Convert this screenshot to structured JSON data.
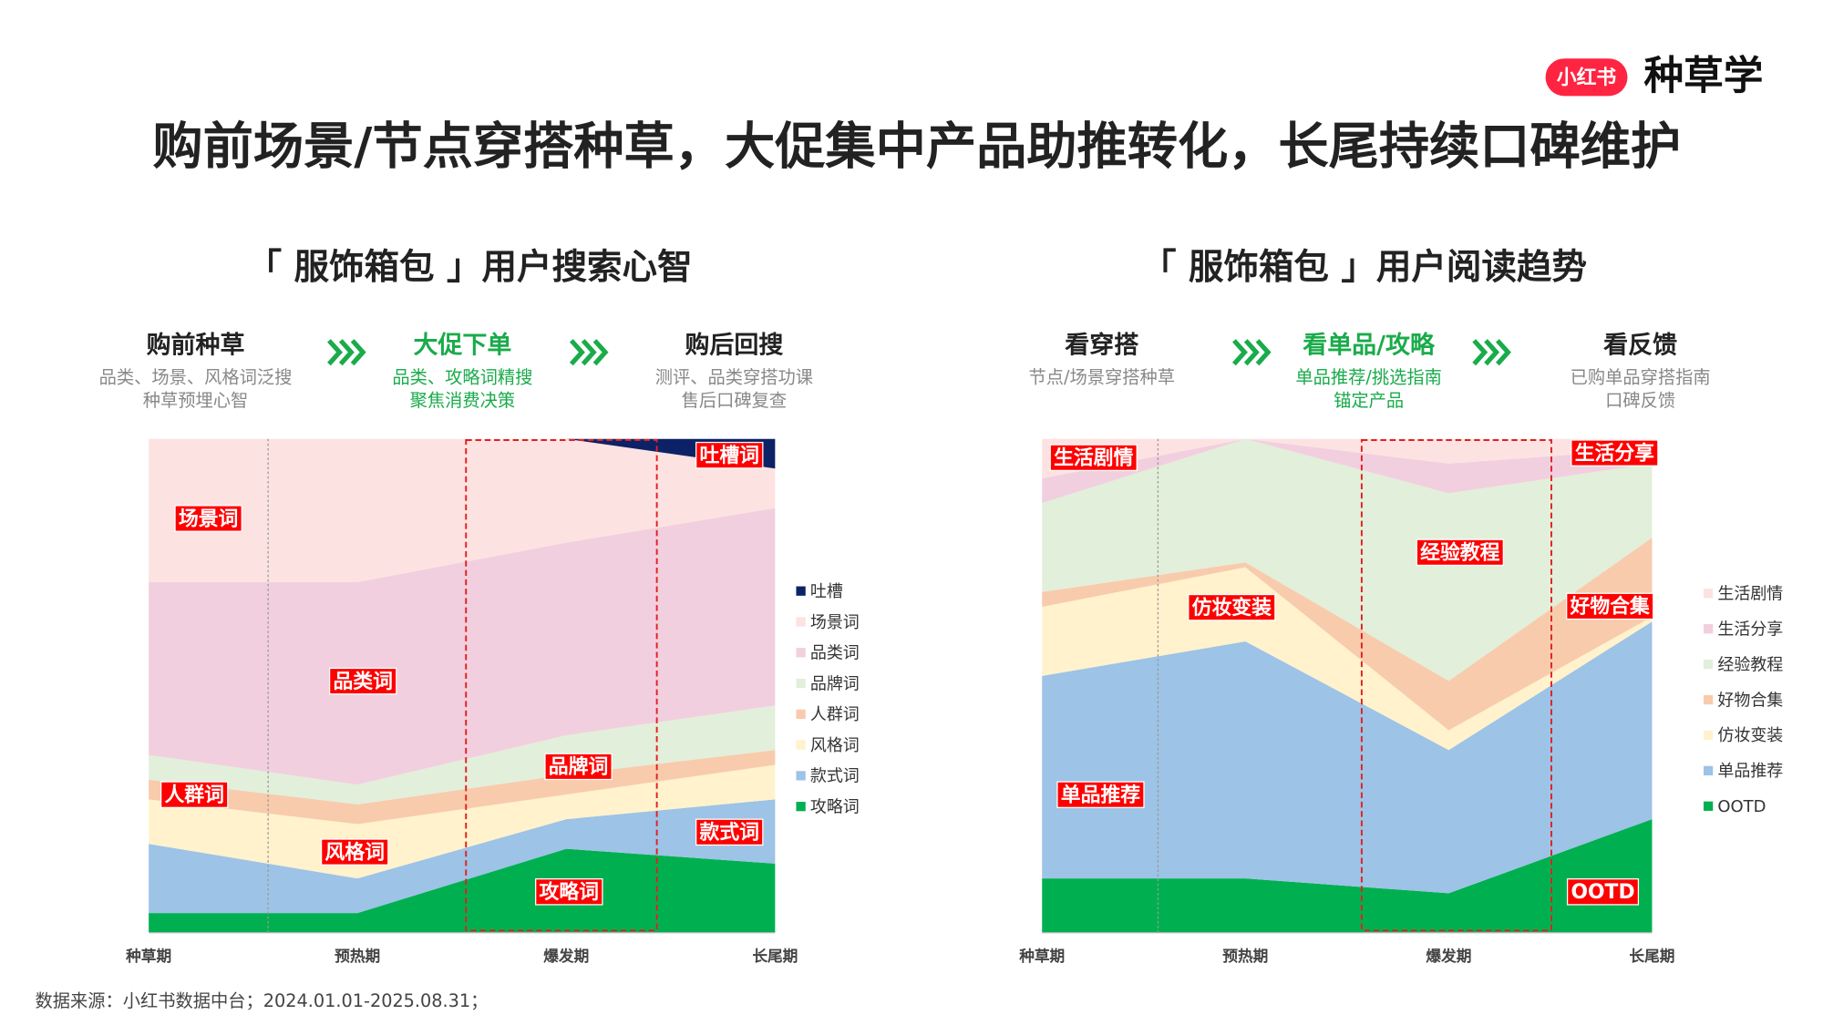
{
  "header": {
    "logo_badge": "小红书",
    "logo_text": "种草学",
    "title": "购前场景/节点穿搭种草，大促集中产品助推转化，长尾持续口碑维护"
  },
  "footer": {
    "source": "数据来源：小红书数据中台；2024.01.01-2025.08.31；"
  },
  "chart_data": [
    {
      "type": "area",
      "stacked": true,
      "title": "「 服饰箱包 」用户搜索心智",
      "stages": [
        {
          "name": "购前种草",
          "desc": [
            "品类、场景、风格词泛搜",
            "种草预埋心智"
          ]
        },
        {
          "name": "大促下单",
          "desc": [
            "品类、攻略词精搜",
            "聚焦消费决策"
          ]
        },
        {
          "name": "购后回搜",
          "desc": [
            "测评、品类穿搭功课",
            "售后口碑复查"
          ]
        }
      ],
      "categories": [
        "种草期",
        "预热期",
        "爆发期",
        "长尾期"
      ],
      "ylim": [
        0,
        100
      ],
      "series": [
        {
          "name": "吐槽",
          "color": "#0d2266",
          "values": [
            0,
            0,
            0,
            6
          ]
        },
        {
          "name": "场景词",
          "color": "#fde2e2",
          "values": [
            29,
            29,
            21,
            8
          ]
        },
        {
          "name": "品类词",
          "color": "#f2cfde",
          "values": [
            35,
            41,
            39,
            40
          ]
        },
        {
          "name": "品牌词",
          "color": "#e2efda",
          "values": [
            5,
            4,
            8,
            9
          ]
        },
        {
          "name": "人群词",
          "color": "#f8cbad",
          "values": [
            4,
            4,
            4,
            3
          ]
        },
        {
          "name": "风格词",
          "color": "#fff2cc",
          "values": [
            9,
            11,
            5,
            7
          ]
        },
        {
          "name": "款式词",
          "color": "#9dc3e6",
          "values": [
            14,
            7,
            6,
            13
          ]
        },
        {
          "name": "攻略词",
          "color": "#00b050",
          "values": [
            4,
            4,
            17,
            14
          ]
        }
      ],
      "area_labels": [
        "吐槽词",
        "场景词",
        "品类词",
        "品牌词",
        "人群词",
        "风格词",
        "款式词",
        "攻略词"
      ]
    },
    {
      "type": "area",
      "stacked": true,
      "title": "「 服饰箱包 」用户阅读趋势",
      "stages": [
        {
          "name": "看穿搭",
          "desc": [
            "节点/场景穿搭种草"
          ]
        },
        {
          "name": "看单品/攻略",
          "desc": [
            "单品推荐/挑选指南",
            "锚定产品"
          ]
        },
        {
          "name": "看反馈",
          "desc": [
            "已购单品穿搭指南",
            "口碑反馈"
          ]
        }
      ],
      "categories": [
        "种草期",
        "预热期",
        "爆发期",
        "长尾期"
      ],
      "ylim": [
        0,
        100
      ],
      "series": [
        {
          "name": "生活剧情",
          "color": "#fde2e2",
          "values": [
            8,
            0,
            5,
            2
          ]
        },
        {
          "name": "生活分享",
          "color": "#f2cfde",
          "values": [
            5,
            0,
            6,
            3
          ]
        },
        {
          "name": "经验教程",
          "color": "#e2efda",
          "values": [
            18,
            25,
            38,
            15
          ]
        },
        {
          "name": "好物合集",
          "color": "#f8cbad",
          "values": [
            3,
            1,
            10,
            16
          ]
        },
        {
          "name": "仿妆变装",
          "color": "#fff2cc",
          "values": [
            14,
            15,
            4,
            1
          ]
        },
        {
          "name": "单品推荐",
          "color": "#9dc3e6",
          "values": [
            41,
            48,
            29,
            40
          ]
        },
        {
          "name": "OOTD",
          "color": "#00b050",
          "values": [
            11,
            11,
            8,
            23
          ]
        }
      ],
      "area_labels": [
        "生活剧情",
        "生活分享",
        "经验教程",
        "好物合集",
        "仿妆变装",
        "单品推荐",
        "OOTD"
      ]
    }
  ]
}
